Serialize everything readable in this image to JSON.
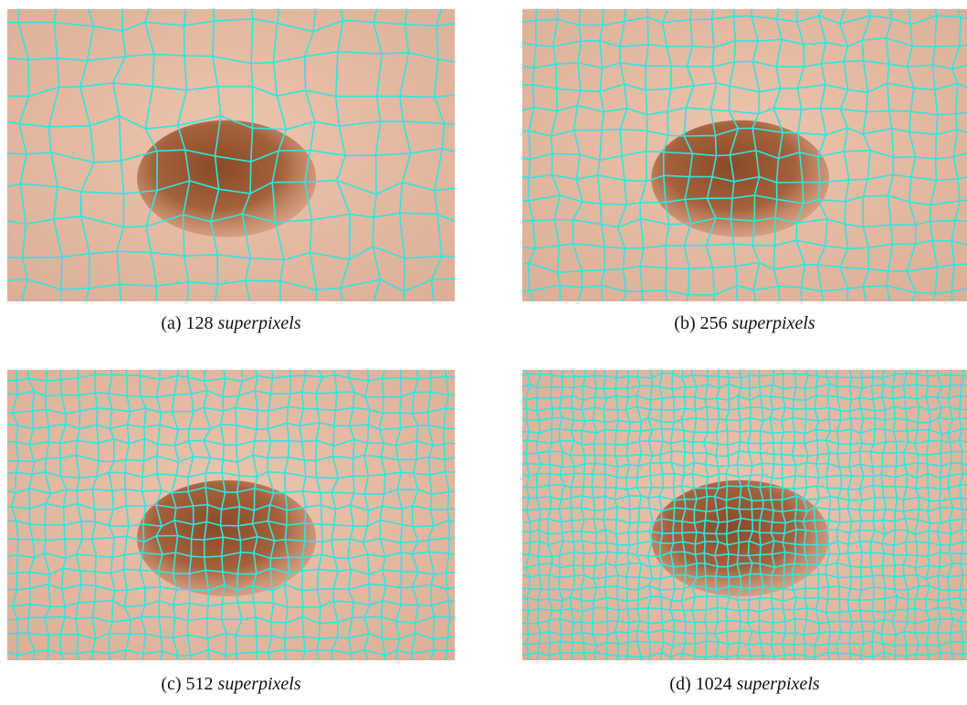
{
  "figure": {
    "panels": [
      {
        "label": "(a)",
        "count": 128,
        "unit": "superpixels"
      },
      {
        "label": "(b)",
        "count": 256,
        "unit": "superpixels"
      },
      {
        "label": "(c)",
        "count": 512,
        "unit": "superpixels"
      },
      {
        "label": "(d)",
        "count": 1024,
        "unit": "superpixels"
      }
    ]
  }
}
